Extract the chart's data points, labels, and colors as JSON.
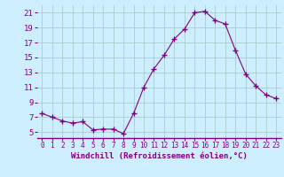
{
  "x": [
    0,
    1,
    2,
    3,
    4,
    5,
    6,
    7,
    8,
    9,
    10,
    11,
    12,
    13,
    14,
    15,
    16,
    17,
    18,
    19,
    20,
    21,
    22,
    23
  ],
  "y": [
    7.5,
    7.0,
    6.5,
    6.2,
    6.4,
    5.3,
    5.4,
    5.4,
    4.8,
    7.5,
    11.0,
    13.5,
    15.3,
    17.5,
    18.8,
    21.0,
    21.2,
    20.0,
    19.5,
    16.0,
    12.8,
    11.2,
    10.0,
    9.5
  ],
  "line_color": "#800080",
  "marker": "+",
  "marker_size": 4,
  "marker_linewidth": 1.0,
  "background_color": "#cceeff",
  "grid_color": "#aacccc",
  "xlabel": "Windchill (Refroidissement éolien,°C)",
  "ylabel_ticks": [
    5,
    7,
    9,
    11,
    13,
    15,
    17,
    19,
    21
  ],
  "xlim": [
    -0.5,
    23.5
  ],
  "ylim": [
    4.2,
    22.0
  ],
  "label_color": "#800080",
  "xlabel_fontsize": 6.5,
  "ytick_fontsize": 6.5,
  "xtick_fontsize": 5.5
}
